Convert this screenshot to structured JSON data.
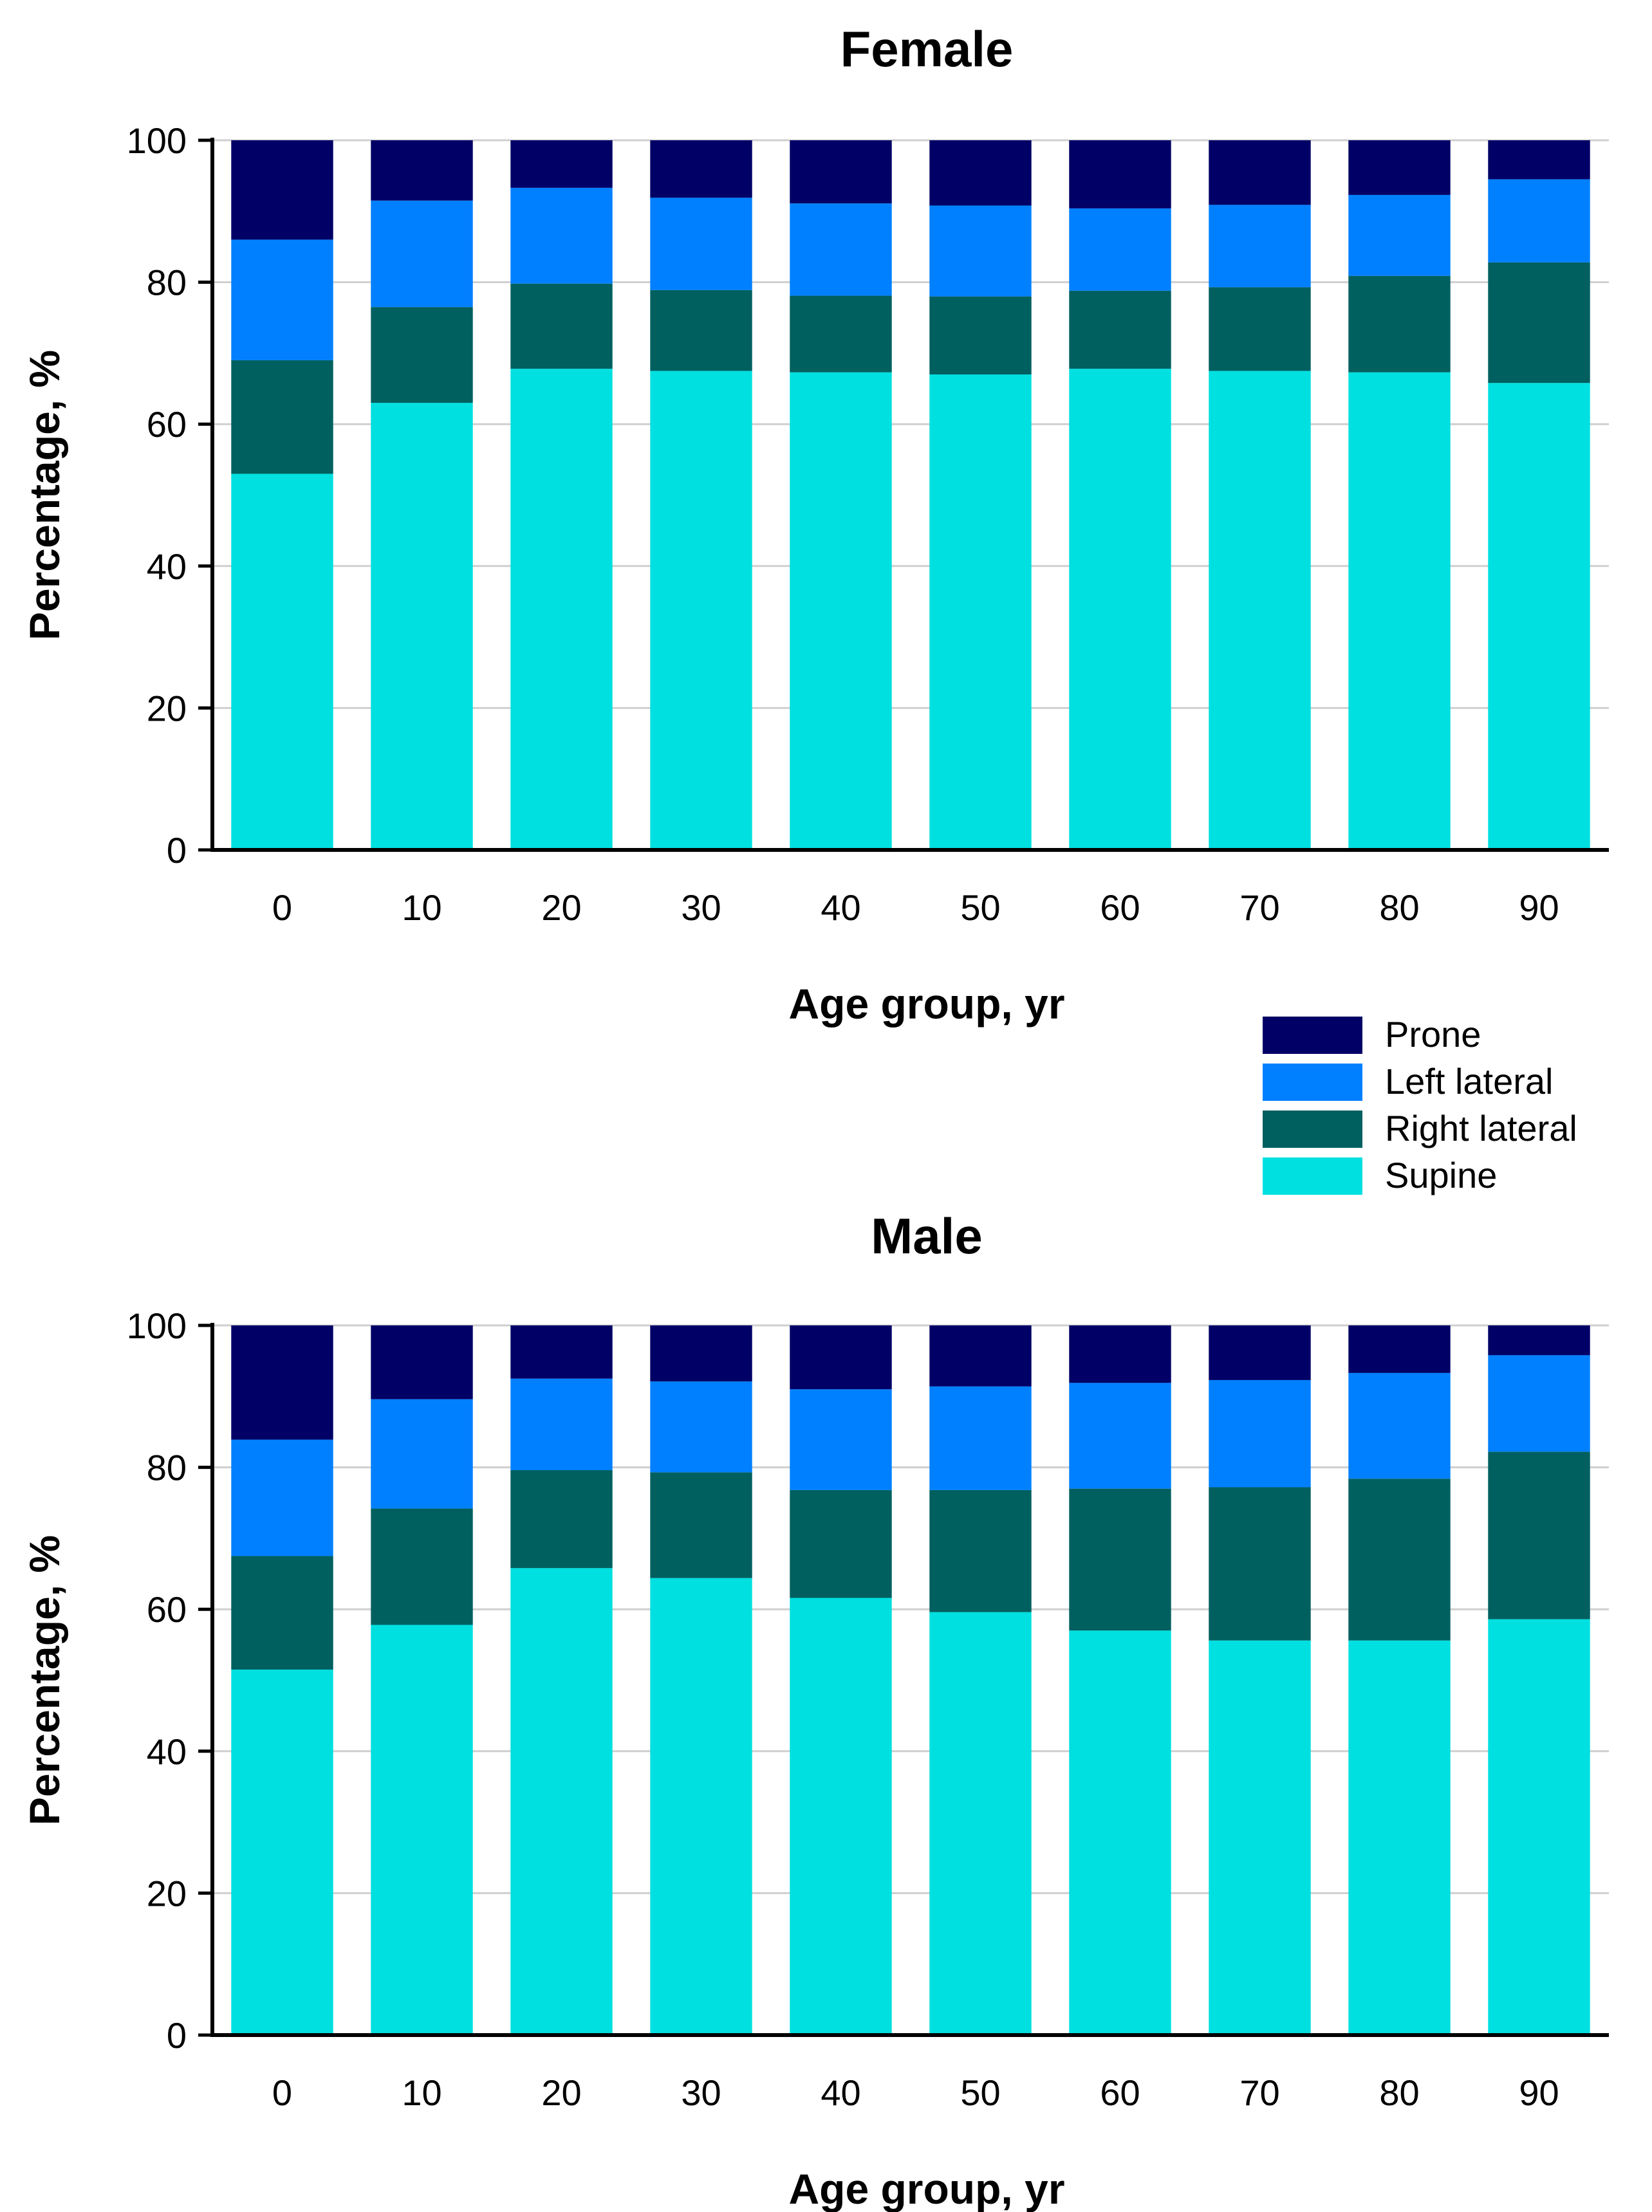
{
  "colors": {
    "Prone": "#000066",
    "Left lateral": "#0080ff",
    "Right lateral": "#006060",
    "Supine": "#00e0e0"
  },
  "legend": {
    "items": [
      "Prone",
      "Left lateral",
      "Right lateral",
      "Supine"
    ]
  },
  "chart_data": [
    {
      "type": "bar",
      "stacked": true,
      "title": "Female",
      "xlabel": "Age group, yr",
      "ylabel": "Percentage, %",
      "ylim": [
        0,
        100
      ],
      "yticks": [
        0,
        20,
        40,
        60,
        80,
        100
      ],
      "grid": true,
      "categories": [
        "0",
        "10",
        "20",
        "30",
        "40",
        "50",
        "60",
        "70",
        "80",
        "90"
      ],
      "series": [
        {
          "name": "Supine",
          "values": [
            53,
            63,
            67.8,
            67.5,
            67.3,
            67,
            67.8,
            67.5,
            67.3,
            65.8
          ]
        },
        {
          "name": "Right lateral",
          "values": [
            16,
            13.5,
            12,
            11.4,
            10.8,
            11,
            11,
            11.8,
            13.6,
            17
          ]
        },
        {
          "name": "Left lateral",
          "values": [
            17,
            15,
            13.5,
            13,
            13,
            12.8,
            11.6,
            11.6,
            11.4,
            11.7
          ]
        },
        {
          "name": "Prone",
          "values": [
            14,
            8.5,
            6.7,
            8.1,
            8.9,
            9.2,
            9.6,
            9.1,
            7.7,
            5.5
          ]
        }
      ]
    },
    {
      "type": "bar",
      "stacked": true,
      "title": "Male",
      "xlabel": "Age group, yr",
      "ylabel": "Percentage, %",
      "ylim": [
        0,
        100
      ],
      "yticks": [
        0,
        20,
        40,
        60,
        80,
        100
      ],
      "grid": true,
      "categories": [
        "0",
        "10",
        "20",
        "30",
        "40",
        "50",
        "60",
        "70",
        "80",
        "90"
      ],
      "series": [
        {
          "name": "Supine",
          "values": [
            51.5,
            57.8,
            65.8,
            64.4,
            61.6,
            59.6,
            57,
            55.6,
            55.6,
            58.6
          ]
        },
        {
          "name": "Right lateral",
          "values": [
            16,
            16.4,
            13.8,
            14.9,
            15.2,
            17.2,
            20,
            21.6,
            22.8,
            23.6
          ]
        },
        {
          "name": "Left lateral",
          "values": [
            16.4,
            15.4,
            12.9,
            12.8,
            14.2,
            14.6,
            14.9,
            15.1,
            14.9,
            13.6
          ]
        },
        {
          "name": "Prone",
          "values": [
            16.1,
            10.4,
            7.5,
            7.9,
            9,
            8.6,
            8.1,
            7.7,
            6.7,
            4.2
          ]
        }
      ]
    }
  ]
}
